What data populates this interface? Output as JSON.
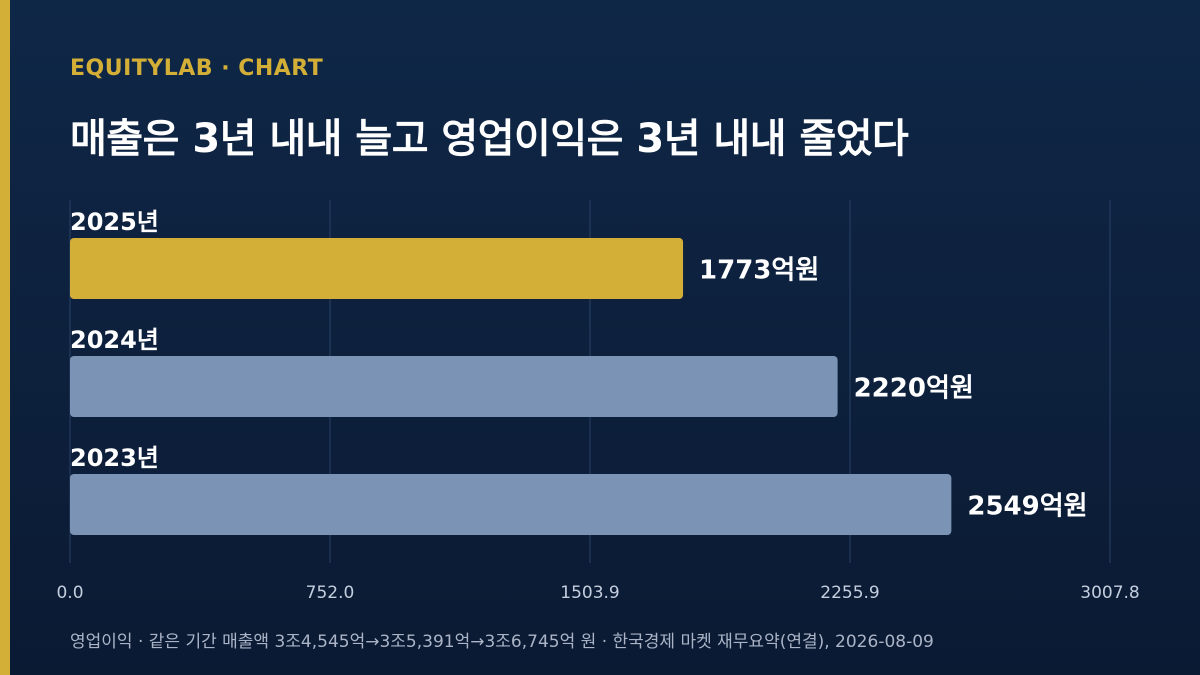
{
  "header": {
    "brand": "EQUITYLAB · CHART",
    "title": "매출은 3년 내내 늘고 영업이익은 3년 내내 줄었다"
  },
  "footer": {
    "note": "영업이익 · 같은 기간 매출액 3조4,545억→3조5,391억→3조6,745억 원 · 한국경제 마켓 재무요약(연결), 2026-08-09"
  },
  "colors": {
    "accent": "#d4af37",
    "bar_default": "#7b93b5",
    "grid": "#2a4266",
    "axis_text": "#c5cede"
  },
  "chart_data": {
    "type": "bar",
    "orientation": "horizontal",
    "categories": [
      "2025년",
      "2024년",
      "2023년"
    ],
    "values": [
      1773,
      2220,
      2549
    ],
    "value_labels": [
      "1773억원",
      "2220억원",
      "2549억원"
    ],
    "highlight": "2025년",
    "xlim": [
      0,
      3007.8
    ],
    "xticks": [
      0.0,
      752.0,
      1503.9,
      2255.9,
      3007.8
    ],
    "xtick_labels": [
      "0.0",
      "752.0",
      "1503.9",
      "2255.9",
      "3007.8"
    ],
    "grid": true
  }
}
